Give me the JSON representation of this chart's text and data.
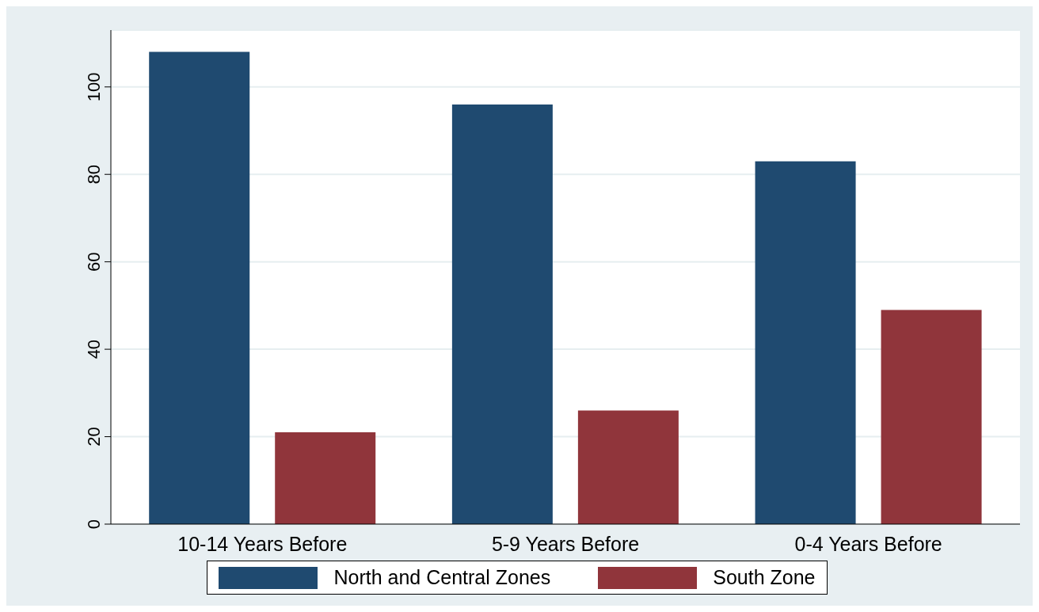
{
  "chart_data": {
    "type": "bar",
    "categories": [
      "10-14 Years Before",
      "5-9 Years Before",
      "0-4 Years Before"
    ],
    "series": [
      {
        "name": "North and Central Zones",
        "color": "#1f4a70",
        "values": [
          108,
          96,
          83
        ]
      },
      {
        "name": "South Zone",
        "color": "#90353b",
        "values": [
          21,
          26,
          49
        ]
      }
    ],
    "ylim": [
      0,
      113
    ],
    "yticks": [
      0,
      20,
      40,
      60,
      80,
      100
    ],
    "grid": "y",
    "legend": "bottom"
  }
}
